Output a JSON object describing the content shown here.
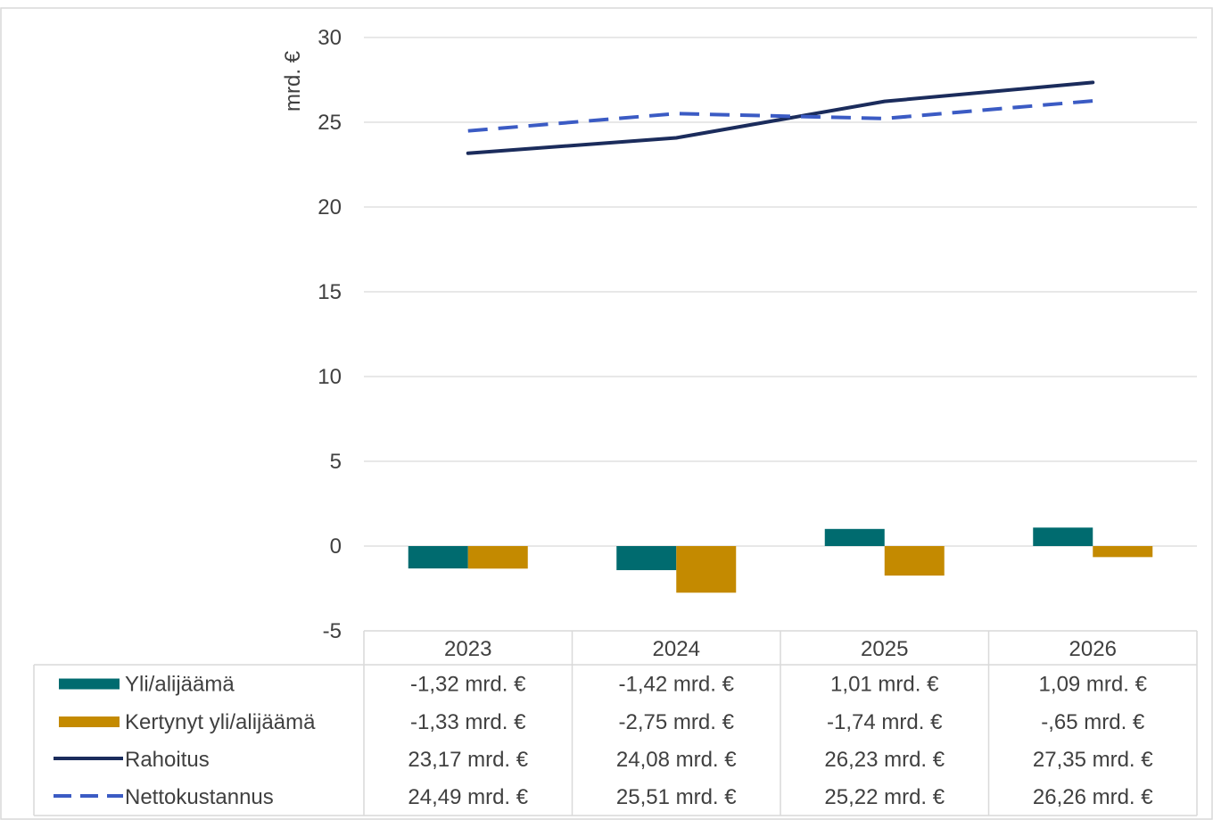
{
  "chart_data": {
    "type": "bar",
    "title": "",
    "xlabel": "",
    "ylabel": "mrd. €",
    "ylim": [
      -5,
      30
    ],
    "yticks": [
      -5,
      0,
      5,
      10,
      15,
      20,
      25,
      30
    ],
    "ytick_labels": [
      "-5",
      "0",
      "5",
      "10",
      "15",
      "20",
      "25",
      "30"
    ],
    "grid": true,
    "categories": [
      "2023",
      "2024",
      "2025",
      "2026"
    ],
    "series": [
      {
        "name": "Yli/alijäämä",
        "kind": "bar",
        "color": "#006b6f",
        "legend_style": "box",
        "values": [
          -1.32,
          -1.42,
          1.01,
          1.09
        ],
        "labels": [
          "-1,32 mrd. €",
          "-1,42 mrd. €",
          "1,01 mrd. €",
          "1,09 mrd. €"
        ]
      },
      {
        "name": "Kertynyt yli/alijäämä",
        "kind": "bar",
        "color": "#c48a00",
        "legend_style": "box",
        "values": [
          -1.33,
          -2.75,
          -1.74,
          -0.65
        ],
        "labels": [
          "-1,33 mrd. €",
          "-2,75 mrd. €",
          "-1,74 mrd. €",
          "-,65 mrd. €"
        ]
      },
      {
        "name": "Rahoitus",
        "kind": "line",
        "color": "#1b2c5c",
        "legend_style": "solid-line",
        "values": [
          23.17,
          24.08,
          26.23,
          27.35
        ],
        "labels": [
          "23,17 mrd. €",
          "24,08 mrd. €",
          "26,23 mrd. €",
          "27,35 mrd. €"
        ]
      },
      {
        "name": "Nettokustannus",
        "kind": "line",
        "color": "#3b5bc4",
        "legend_style": "dashed-line",
        "dashed": true,
        "values": [
          24.49,
          25.51,
          25.22,
          26.26
        ],
        "labels": [
          "24,49 mrd. €",
          "25,51 mrd. €",
          "25,22 mrd. €",
          "26,26 mrd. €"
        ]
      }
    ],
    "legend_placement": "data-table-below"
  }
}
